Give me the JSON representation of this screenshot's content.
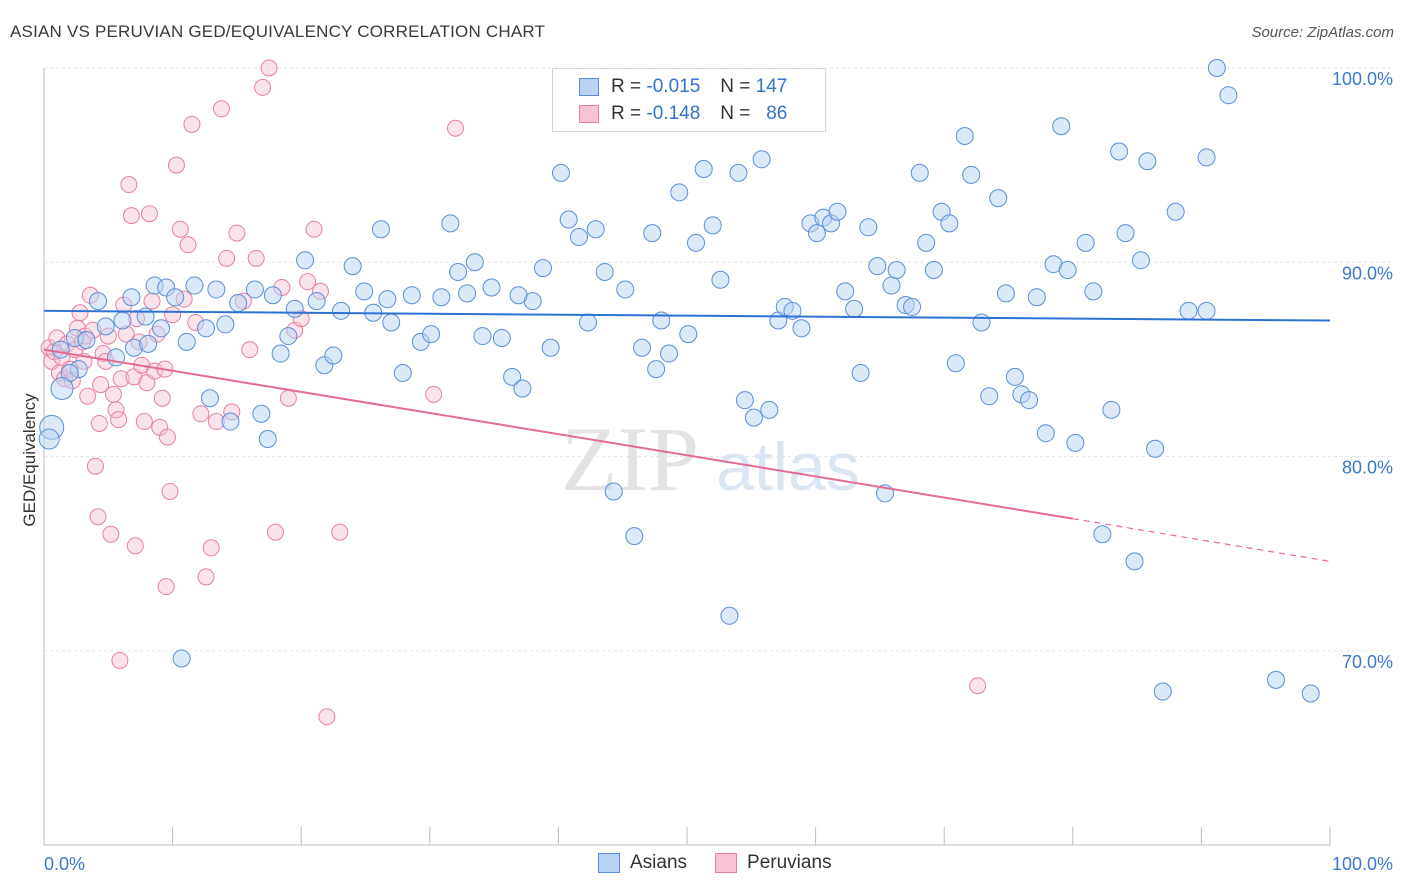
{
  "title": "ASIAN VS PERUVIAN GED/EQUIVALENCY CORRELATION CHART",
  "source": "Source: ZipAtlas.com",
  "watermark": {
    "zip": "ZIP",
    "atlas": "atlas"
  },
  "legend": {
    "r_label": "R =",
    "n_label": "N =",
    "rows": [
      {
        "name": "Asians",
        "r": "-0.015",
        "n": "147",
        "fill": "#b8d3f4",
        "stroke": "#5a8fd8"
      },
      {
        "name": "Peruvians",
        "r": "-0.148",
        "n": "86",
        "fill": "#f9c3d4",
        "stroke": "#e77fa2"
      }
    ]
  },
  "colors": {
    "asians": "#5a8fd8",
    "asians_line": "#2d72d2",
    "peruvians": "#e77fa2",
    "peruvians_line": "#e56b95",
    "tick_label": "#3a78cc"
  },
  "chart_data": {
    "type": "scatter",
    "title": "ASIAN VS PERUVIAN GED/EQUIVALENCY CORRELATION CHART",
    "xlabel": "",
    "ylabel": "GED/Equivalency",
    "xlim": [
      0,
      100
    ],
    "ylim": [
      60,
      100
    ],
    "x_tick_labels": [
      "0.0%",
      "100.0%"
    ],
    "y_ticks": [
      70,
      80,
      90,
      100
    ],
    "y_tick_labels": [
      "70.0%",
      "80.0%",
      "90.0%",
      "100.0%"
    ],
    "grid": true,
    "legend_position": "bottom",
    "series": [
      {
        "name": "Asians",
        "r": -0.015,
        "n": 147,
        "trend": {
          "x0": 0,
          "y0": 87.5,
          "x1": 100,
          "y1": 87.0
        },
        "points": [
          [
            1.3,
            85.5
          ],
          [
            2.4,
            86.1
          ],
          [
            2.7,
            84.5
          ],
          [
            3.3,
            86.0
          ],
          [
            4.2,
            88.0
          ],
          [
            6.1,
            87.0
          ],
          [
            6.8,
            88.2
          ],
          [
            7.0,
            85.6
          ],
          [
            7.9,
            87.2
          ],
          [
            8.6,
            88.8
          ],
          [
            9.5,
            88.7
          ],
          [
            10.2,
            88.2
          ],
          [
            11.1,
            85.9
          ],
          [
            11.7,
            88.8
          ],
          [
            12.6,
            86.6
          ],
          [
            13.4,
            88.6
          ],
          [
            14.1,
            86.8
          ],
          [
            15.1,
            87.9
          ],
          [
            16.4,
            88.6
          ],
          [
            16.9,
            82.2
          ],
          [
            17.4,
            80.9
          ],
          [
            17.8,
            88.3
          ],
          [
            19.0,
            86.2
          ],
          [
            19.5,
            87.6
          ],
          [
            20.3,
            90.1
          ],
          [
            21.2,
            88.0
          ],
          [
            21.8,
            84.7
          ],
          [
            22.5,
            85.2
          ],
          [
            23.1,
            87.5
          ],
          [
            24.0,
            89.8
          ],
          [
            24.9,
            88.5
          ],
          [
            25.6,
            87.4
          ],
          [
            26.2,
            91.7
          ],
          [
            27.0,
            86.9
          ],
          [
            27.9,
            84.3
          ],
          [
            28.6,
            88.3
          ],
          [
            29.3,
            85.9
          ],
          [
            30.1,
            86.3
          ],
          [
            30.9,
            88.2
          ],
          [
            31.6,
            92.0
          ],
          [
            32.2,
            89.5
          ],
          [
            32.9,
            88.4
          ],
          [
            33.5,
            90.0
          ],
          [
            34.1,
            86.2
          ],
          [
            34.8,
            88.7
          ],
          [
            35.6,
            86.1
          ],
          [
            36.4,
            84.1
          ],
          [
            37.2,
            83.5
          ],
          [
            38.0,
            88.0
          ],
          [
            38.8,
            89.7
          ],
          [
            39.4,
            85.6
          ],
          [
            40.2,
            94.6
          ],
          [
            40.8,
            92.2
          ],
          [
            41.6,
            91.3
          ],
          [
            42.3,
            86.9
          ],
          [
            42.9,
            91.7
          ],
          [
            43.6,
            89.5
          ],
          [
            44.3,
            78.2
          ],
          [
            45.2,
            88.6
          ],
          [
            45.9,
            75.9
          ],
          [
            46.5,
            85.6
          ],
          [
            47.3,
            91.5
          ],
          [
            48.0,
            87.0
          ],
          [
            48.6,
            85.3
          ],
          [
            49.4,
            93.6
          ],
          [
            50.1,
            86.3
          ],
          [
            50.7,
            91.0
          ],
          [
            51.3,
            94.8
          ],
          [
            52.0,
            91.9
          ],
          [
            52.6,
            89.1
          ],
          [
            53.3,
            71.8
          ],
          [
            54.0,
            94.6
          ],
          [
            54.5,
            82.9
          ],
          [
            55.2,
            82.0
          ],
          [
            55.8,
            95.3
          ],
          [
            56.4,
            82.4
          ],
          [
            57.1,
            87.0
          ],
          [
            57.6,
            87.7
          ],
          [
            58.2,
            87.5
          ],
          [
            58.9,
            86.6
          ],
          [
            59.6,
            92.0
          ],
          [
            60.1,
            91.5
          ],
          [
            60.6,
            92.3
          ],
          [
            61.2,
            92.0
          ],
          [
            61.7,
            92.6
          ],
          [
            62.3,
            88.5
          ],
          [
            63.0,
            87.6
          ],
          [
            63.5,
            84.3
          ],
          [
            64.1,
            91.8
          ],
          [
            64.8,
            89.8
          ],
          [
            65.4,
            78.1
          ],
          [
            65.9,
            88.8
          ],
          [
            66.3,
            89.6
          ],
          [
            67.0,
            87.8
          ],
          [
            67.5,
            87.7
          ],
          [
            68.1,
            94.6
          ],
          [
            68.6,
            91.0
          ],
          [
            69.2,
            89.6
          ],
          [
            69.8,
            92.6
          ],
          [
            70.4,
            92.0
          ],
          [
            70.9,
            84.8
          ],
          [
            71.6,
            96.5
          ],
          [
            72.1,
            94.5
          ],
          [
            72.9,
            86.9
          ],
          [
            73.5,
            83.1
          ],
          [
            74.2,
            93.3
          ],
          [
            74.8,
            88.4
          ],
          [
            75.5,
            84.1
          ],
          [
            76.0,
            83.2
          ],
          [
            76.6,
            82.9
          ],
          [
            77.2,
            88.2
          ],
          [
            77.9,
            81.2
          ],
          [
            78.5,
            89.9
          ],
          [
            79.1,
            97.0
          ],
          [
            79.6,
            89.6
          ],
          [
            80.2,
            80.7
          ],
          [
            81.0,
            91.0
          ],
          [
            81.6,
            88.5
          ],
          [
            82.3,
            76.0
          ],
          [
            83.0,
            82.4
          ],
          [
            83.6,
            95.7
          ],
          [
            84.1,
            91.5
          ],
          [
            84.8,
            74.6
          ],
          [
            85.3,
            90.1
          ],
          [
            85.8,
            95.2
          ],
          [
            86.4,
            80.4
          ],
          [
            87.0,
            67.9
          ],
          [
            88.0,
            92.6
          ],
          [
            89.0,
            87.5
          ],
          [
            90.4,
            95.4
          ],
          [
            91.2,
            100.0
          ],
          [
            92.1,
            98.6
          ],
          [
            95.8,
            68.5
          ],
          [
            98.5,
            67.8
          ],
          [
            90.4,
            87.5
          ],
          [
            2.0,
            84.3
          ],
          [
            4.8,
            86.7
          ],
          [
            5.6,
            85.1
          ],
          [
            8.1,
            85.8
          ],
          [
            9.1,
            86.6
          ],
          [
            10.7,
            69.6
          ],
          [
            12.9,
            83.0
          ],
          [
            14.5,
            81.8
          ],
          [
            18.4,
            85.3
          ],
          [
            26.7,
            88.1
          ],
          [
            36.9,
            88.3
          ],
          [
            47.6,
            84.5
          ]
        ]
      },
      {
        "name": "Peruvians",
        "r": -0.148,
        "n": 86,
        "trend": {
          "x0": 0,
          "y0": 85.5,
          "x1": 80,
          "y1": 76.8
        },
        "trend_dashed": {
          "x0": 80,
          "y0": 76.8,
          "x1": 100,
          "y1": 74.6
        },
        "points": [
          [
            0.4,
            85.6
          ],
          [
            0.6,
            84.9
          ],
          [
            0.8,
            85.4
          ],
          [
            1.0,
            86.1
          ],
          [
            1.2,
            84.3
          ],
          [
            1.4,
            85.1
          ],
          [
            1.6,
            84.0
          ],
          [
            1.8,
            85.8
          ],
          [
            2.0,
            84.5
          ],
          [
            2.2,
            83.9
          ],
          [
            2.4,
            85.5
          ],
          [
            2.6,
            86.6
          ],
          [
            2.8,
            87.4
          ],
          [
            3.0,
            85.9
          ],
          [
            3.2,
            86.2
          ],
          [
            3.4,
            83.1
          ],
          [
            3.6,
            88.3
          ],
          [
            3.8,
            86.5
          ],
          [
            4.0,
            79.5
          ],
          [
            4.2,
            76.9
          ],
          [
            4.4,
            83.7
          ],
          [
            4.6,
            85.3
          ],
          [
            4.8,
            84.9
          ],
          [
            5.0,
            86.2
          ],
          [
            5.2,
            76.0
          ],
          [
            5.4,
            83.2
          ],
          [
            5.6,
            82.4
          ],
          [
            5.8,
            81.9
          ],
          [
            6.0,
            84.0
          ],
          [
            6.2,
            87.8
          ],
          [
            6.4,
            86.3
          ],
          [
            6.6,
            94.0
          ],
          [
            6.8,
            92.4
          ],
          [
            7.0,
            84.1
          ],
          [
            7.2,
            87.1
          ],
          [
            7.4,
            85.9
          ],
          [
            7.6,
            84.7
          ],
          [
            7.8,
            81.8
          ],
          [
            8.0,
            83.8
          ],
          [
            8.2,
            92.5
          ],
          [
            8.4,
            88.0
          ],
          [
            8.6,
            84.4
          ],
          [
            8.8,
            86.3
          ],
          [
            9.0,
            81.5
          ],
          [
            9.2,
            83.0
          ],
          [
            9.4,
            84.5
          ],
          [
            9.6,
            81.0
          ],
          [
            9.8,
            78.2
          ],
          [
            10.0,
            87.3
          ],
          [
            10.3,
            95.0
          ],
          [
            10.6,
            91.7
          ],
          [
            10.9,
            88.1
          ],
          [
            11.2,
            90.9
          ],
          [
            11.5,
            97.1
          ],
          [
            11.8,
            86.9
          ],
          [
            12.2,
            82.2
          ],
          [
            12.6,
            73.8
          ],
          [
            13.0,
            75.3
          ],
          [
            13.4,
            81.8
          ],
          [
            13.8,
            97.9
          ],
          [
            14.2,
            90.2
          ],
          [
            14.6,
            82.3
          ],
          [
            15.0,
            91.5
          ],
          [
            15.5,
            88.0
          ],
          [
            16.0,
            85.5
          ],
          [
            16.5,
            90.2
          ],
          [
            17.0,
            99.0
          ],
          [
            17.5,
            100.0
          ],
          [
            18.0,
            76.1
          ],
          [
            18.5,
            88.7
          ],
          [
            19.0,
            83.0
          ],
          [
            19.5,
            86.5
          ],
          [
            20.0,
            87.1
          ],
          [
            20.5,
            89.0
          ],
          [
            21.0,
            91.7
          ],
          [
            21.5,
            88.5
          ],
          [
            22.0,
            66.6
          ],
          [
            23.0,
            76.1
          ],
          [
            30.3,
            83.2
          ],
          [
            32.0,
            96.9
          ],
          [
            72.6,
            68.2
          ],
          [
            5.9,
            69.5
          ],
          [
            7.1,
            75.4
          ],
          [
            9.5,
            73.3
          ],
          [
            4.3,
            81.7
          ],
          [
            3.1,
            84.9
          ]
        ]
      }
    ]
  }
}
